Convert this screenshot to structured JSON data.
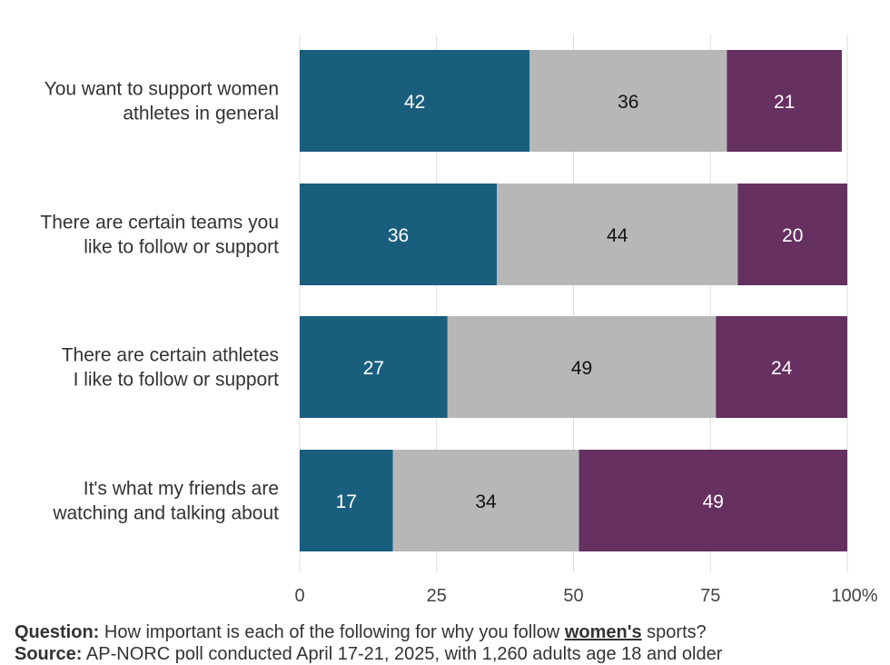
{
  "chart_data": {
    "type": "bar",
    "orientation": "horizontal",
    "stacked": true,
    "categories": [
      [
        "You want to support women",
        "athletes in general"
      ],
      [
        "There are certain teams you",
        "like to follow or support"
      ],
      [
        "There are certain athletes",
        "I like to follow or support"
      ],
      [
        "It's what my friends are",
        "watching and talking about"
      ]
    ],
    "series": [
      {
        "color": "#1a5e7e",
        "label_color": "#ffffff",
        "values": [
          42,
          36,
          27,
          17
        ]
      },
      {
        "color": "#b7b7b7",
        "label_color": "#111111",
        "values": [
          36,
          44,
          49,
          34
        ]
      },
      {
        "color": "#663060",
        "label_color": "#ffffff",
        "values": [
          21,
          20,
          24,
          49
        ]
      }
    ],
    "x_ticks": [
      "0",
      "25",
      "50",
      "75",
      "100%"
    ],
    "xlim": [
      0,
      100
    ],
    "grid": true,
    "legend": "none"
  },
  "footnote": {
    "question_label": "Question:",
    "question_pre": "How important is each of the following for why you follow",
    "question_emph": "women's",
    "question_post": "sports?",
    "source_label": "Source:",
    "source_text": "AP-NORC poll conducted April 17-21, 2025, with 1,260 adults age 18 and older"
  }
}
